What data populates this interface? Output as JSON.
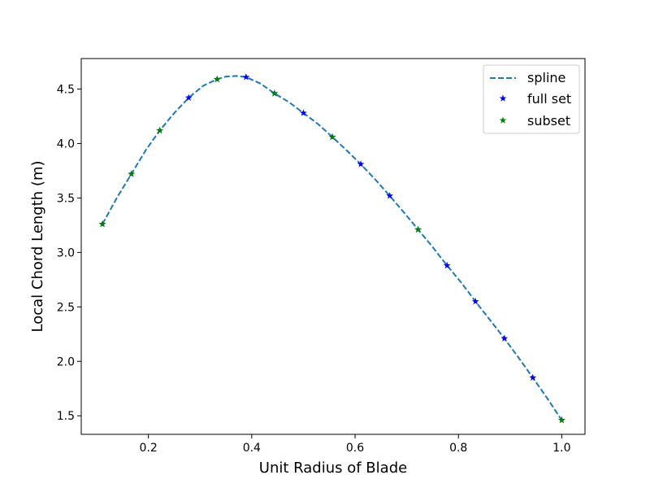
{
  "chart_data": {
    "type": "line",
    "title": "",
    "xlabel": "Unit Radius of Blade",
    "ylabel": "Local Chord Length (m)",
    "xlim": [
      0.07,
      1.045
    ],
    "ylim": [
      1.33,
      4.78
    ],
    "xticks": [
      0.2,
      0.4,
      0.6,
      0.8,
      1.0
    ],
    "xtick_labels": [
      "0.2",
      "0.4",
      "0.6",
      "0.8",
      "1.0"
    ],
    "yticks": [
      1.5,
      2.0,
      2.5,
      3.0,
      3.5,
      4.0,
      4.5
    ],
    "ytick_labels": [
      "1.5",
      "2.0",
      "2.5",
      "3.0",
      "3.5",
      "4.0",
      "4.5"
    ],
    "grid": false,
    "legend_position": "top-right",
    "colors": {
      "spline": "#1f77b4",
      "full_set": "#0000ff",
      "subset": "#008000"
    },
    "series": [
      {
        "name": "spline",
        "style": "dashed-line",
        "x": [
          0.111,
          0.14,
          0.167,
          0.195,
          0.222,
          0.25,
          0.278,
          0.306,
          0.333,
          0.35,
          0.37,
          0.389,
          0.417,
          0.444,
          0.472,
          0.5,
          0.528,
          0.556,
          0.583,
          0.611,
          0.639,
          0.667,
          0.694,
          0.722,
          0.75,
          0.778,
          0.806,
          0.833,
          0.861,
          0.889,
          0.917,
          0.944,
          0.972,
          1.0
        ],
        "y": [
          3.26,
          3.51,
          3.72,
          3.94,
          4.12,
          4.28,
          4.42,
          4.53,
          4.59,
          4.615,
          4.62,
          4.61,
          4.55,
          4.46,
          4.38,
          4.28,
          4.18,
          4.06,
          3.94,
          3.81,
          3.67,
          3.52,
          3.37,
          3.21,
          3.05,
          2.88,
          2.72,
          2.55,
          2.38,
          2.21,
          2.03,
          1.85,
          1.66,
          1.46
        ]
      },
      {
        "name": "full set",
        "style": "star-marker",
        "x": [
          0.111,
          0.167,
          0.222,
          0.278,
          0.333,
          0.389,
          0.444,
          0.5,
          0.556,
          0.611,
          0.667,
          0.722,
          0.778,
          0.833,
          0.889,
          0.944,
          1.0
        ],
        "y": [
          3.26,
          3.72,
          4.12,
          4.42,
          4.59,
          4.61,
          4.46,
          4.28,
          4.06,
          3.81,
          3.52,
          3.21,
          2.88,
          2.55,
          2.21,
          1.85,
          1.46
        ]
      },
      {
        "name": "subset",
        "style": "star-marker",
        "x": [
          0.111,
          0.167,
          0.222,
          0.333,
          0.444,
          0.556,
          0.722,
          1.0
        ],
        "y": [
          3.26,
          3.72,
          4.12,
          4.59,
          4.46,
          4.06,
          3.21,
          1.46
        ]
      }
    ]
  }
}
